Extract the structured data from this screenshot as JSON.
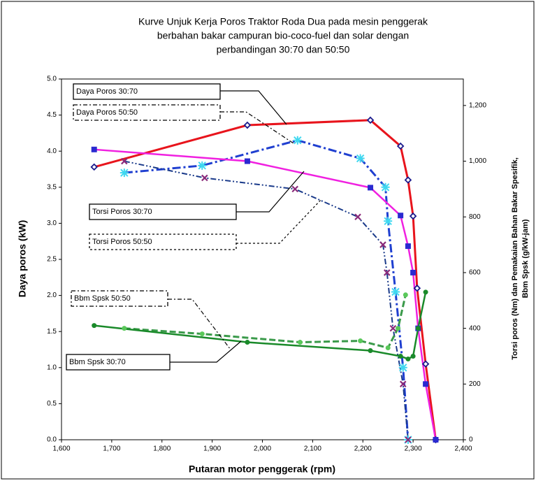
{
  "chart_data": {
    "type": "line",
    "title": [
      "Kurve Unjuk Kerja Poros Traktor Roda Dua pada mesin penggerak",
      "berbahan bakar campuran bio-coco-fuel dan solar dengan",
      "perbandingan 30:70 dan 50:50"
    ],
    "x_label": "Putaran motor penggerak (rpm)",
    "y_label": "Daya poros (kW)",
    "y2_label": [
      "Torsi poros (Nm) dan Pemakaian Bahan Bakar Spesifik,",
      "Bbm Spsk (g/kW-jam)"
    ],
    "xlim": [
      1600,
      2400
    ],
    "xticks": [
      {
        "value": 1600,
        "label": "1,600"
      },
      {
        "value": 1700,
        "label": "1,700"
      },
      {
        "value": 1800,
        "label": "1,800"
      },
      {
        "value": 1900,
        "label": "1,900"
      },
      {
        "value": 2000,
        "label": "2,000"
      },
      {
        "value": 2100,
        "label": "2,100"
      },
      {
        "value": 2200,
        "label": "2,200"
      },
      {
        "value": 2300,
        "label": "2,300"
      },
      {
        "value": 2400,
        "label": "2,400"
      }
    ],
    "ylim": [
      0,
      5
    ],
    "yticks": [
      {
        "value": 0,
        "label": "0.0"
      },
      0.5,
      {
        "value": 1,
        "label": "1.0"
      },
      1.5,
      {
        "value": 2,
        "label": "2.0"
      },
      2.5,
      {
        "value": 3,
        "label": "3.0"
      },
      3.5,
      {
        "value": 4,
        "label": "4.0"
      },
      4.5,
      {
        "value": 5,
        "label": "5.0"
      }
    ],
    "y2lim": [
      0,
      1295
    ],
    "y2ticks": [
      0,
      200,
      400,
      600,
      800,
      {
        "value": 1000,
        "label": "1,000"
      },
      {
        "value": 1200,
        "label": "1,200"
      }
    ],
    "series": [
      {
        "name": "Daya Poros 30:70",
        "color": "#e8141c",
        "marker": "diamond",
        "marker_color": "#1a1a8c",
        "dash": "solid",
        "x": [
          1665,
          1970,
          2215,
          2275,
          2290,
          2300,
          2308,
          2325,
          2345
        ],
        "values": [
          3.78,
          4.36,
          4.43,
          4.07,
          3.6,
          3.1,
          2.1,
          1.05,
          0.0
        ]
      },
      {
        "name": "Daya Poros 50:50",
        "color": "#1f3fd0",
        "marker": "star",
        "marker_color": "#3fd8f0",
        "dash": "dashdot",
        "x": [
          1725,
          1880,
          2070,
          2195,
          2245,
          2250,
          2265,
          2280,
          2290
        ],
        "values": [
          3.7,
          3.8,
          4.15,
          3.9,
          3.5,
          3.03,
          2.05,
          1.0,
          0.0
        ]
      },
      {
        "name": "Torsi Poros 30:70",
        "color": "#f020e0",
        "marker": "square",
        "marker_color": "#2a2ad0",
        "dash": "solid",
        "axis": "y2",
        "x": [
          1665,
          1970,
          2215,
          2275,
          2290,
          2300,
          2310,
          2325,
          2345
        ],
        "values": [
          1042,
          1000,
          905,
          805,
          695,
          600,
          400,
          200,
          0
        ]
      },
      {
        "name": "Torsi Poros 50:50",
        "color": "#1a3a8a",
        "marker": "x",
        "marker_color": "#8a2a7a",
        "dash": "dashdotdot",
        "axis": "y2",
        "x": [
          1725,
          1885,
          2065,
          2190,
          2240,
          2248,
          2260,
          2280,
          2290
        ],
        "values": [
          1000,
          940,
          900,
          800,
          700,
          600,
          400,
          200,
          0
        ]
      },
      {
        "name": "Bbm Spsk 50:50",
        "color": "#3a9a4a",
        "marker": "circle",
        "marker_color": "#5ac85a",
        "dash": "dashed",
        "axis": "y2",
        "x": [
          1725,
          1880,
          2075,
          2195,
          2250,
          2270,
          2285
        ],
        "values": [
          400,
          380,
          350,
          355,
          330,
          400,
          520
        ]
      },
      {
        "name": "Bbm Spsk 30:70",
        "color": "#1a8a2a",
        "marker": "circle",
        "marker_color": "#1a8a2a",
        "dash": "solid",
        "axis": "y2",
        "x": [
          1665,
          1970,
          2215,
          2275,
          2290,
          2300,
          2310,
          2325
        ],
        "values": [
          410,
          350,
          320,
          300,
          290,
          300,
          400,
          530
        ]
      }
    ]
  }
}
